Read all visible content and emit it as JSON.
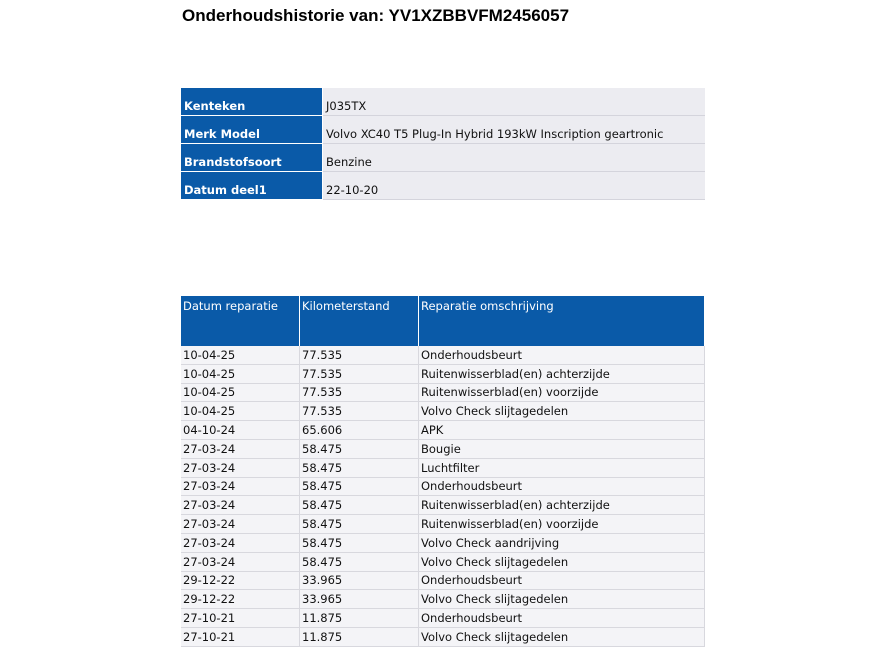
{
  "title": "Onderhoudshistorie van: YV1XZBBVFM2456057",
  "info": [
    {
      "label": "Kenteken",
      "value": "J035TX"
    },
    {
      "label": "Merk Model",
      "value": "Volvo XC40 T5 Plug-In Hybrid 193kW Inscription geartronic"
    },
    {
      "label": "Brandstofsoort",
      "value": "Benzine"
    },
    {
      "label": "Datum deel1",
      "value": "22-10-20"
    }
  ],
  "history": {
    "headers": [
      "Datum reparatie",
      "Kilometerstand",
      "Reparatie omschrijving"
    ],
    "rows": [
      [
        "10-04-25",
        "77.535",
        "Onderhoudsbeurt"
      ],
      [
        "10-04-25",
        "77.535",
        "Ruitenwisserblad(en) achterzijde"
      ],
      [
        "10-04-25",
        "77.535",
        "Ruitenwisserblad(en) voorzijde"
      ],
      [
        "10-04-25",
        "77.535",
        "Volvo Check slijtagedelen"
      ],
      [
        "04-10-24",
        "65.606",
        "APK"
      ],
      [
        "27-03-24",
        "58.475",
        "Bougie"
      ],
      [
        "27-03-24",
        "58.475",
        "Luchtfilter"
      ],
      [
        "27-03-24",
        "58.475",
        "Onderhoudsbeurt"
      ],
      [
        "27-03-24",
        "58.475",
        "Ruitenwisserblad(en) achterzijde"
      ],
      [
        "27-03-24",
        "58.475",
        "Ruitenwisserblad(en) voorzijde"
      ],
      [
        "27-03-24",
        "58.475",
        "Volvo Check aandrijving"
      ],
      [
        "27-03-24",
        "58.475",
        "Volvo Check slijtagedelen"
      ],
      [
        "29-12-22",
        "33.965",
        "Onderhoudsbeurt"
      ],
      [
        "29-12-22",
        "33.965",
        "Volvo Check slijtagedelen"
      ],
      [
        "27-10-21",
        "11.875",
        "Onderhoudsbeurt"
      ],
      [
        "27-10-21",
        "11.875",
        "Volvo Check slijtagedelen"
      ]
    ]
  }
}
